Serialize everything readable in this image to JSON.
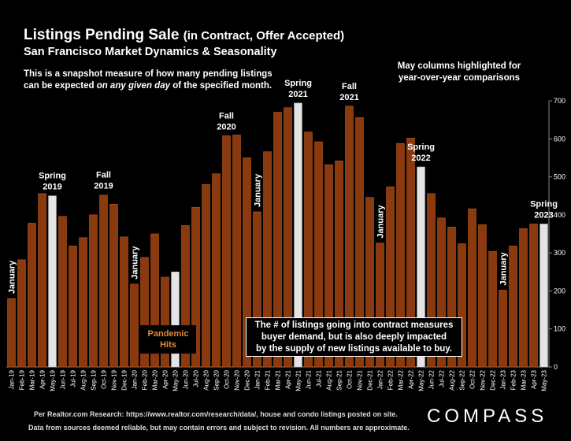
{
  "header": {
    "title_main": "Listings Pending Sale",
    "title_paren": "(in Contract, Offer Accepted)",
    "subtitle": "San Francisco Market Dynamics & Seasonality",
    "desc_line1": "This is a snapshot measure of how many pending listings",
    "desc_line2_a": "can be expected ",
    "desc_line2_em": "on any given day",
    "desc_line2_b": " of the specified month.",
    "may_note_line1": "May columns highlighted for",
    "may_note_line2": "year-over-year comparisons"
  },
  "callout": {
    "line1": "The # of listings going into contract measures",
    "line2": "buyer demand, but is also deeply impacted",
    "line3": "by the supply of new listings available to buy."
  },
  "pandemic": {
    "line1": "Pandemic",
    "line2": "Hits"
  },
  "footer": {
    "line1": "Per Realtor.com Research:  https://www.realtor.com/research/data/, house and condo listings posted on site.",
    "line2": "Data from sources deemed reliable, but may contain errors and subject to revision. All numbers are approximate."
  },
  "logo": "COMPASS",
  "colors": {
    "bar": "#8b3a10",
    "bar_stroke": "#c0581c",
    "highlight": "#e4e4e4",
    "background": "#000000"
  },
  "chart_data": {
    "type": "bar",
    "ylim": [
      0,
      700
    ],
    "yticks": [
      0,
      100,
      200,
      300,
      400,
      500,
      600,
      700
    ],
    "grid": false,
    "categories": [
      "Jan-19",
      "Feb-19",
      "Mar-19",
      "Apr-19",
      "May-19",
      "Jun-19",
      "Jul-19",
      "Aug-19",
      "Sep-19",
      "Oct-19",
      "Nov-19",
      "Dec-19",
      "Jan-20",
      "Feb-20",
      "Mar-20",
      "Apr-20",
      "May-20",
      "Jun-20",
      "Jul-20",
      "Aug-20",
      "Sep-20",
      "Oct-20",
      "Nov-20",
      "Dec-20",
      "Jan-21",
      "Feb-21",
      "Mar-21",
      "Apr-21",
      "May-21",
      "Jun-21",
      "Jul-21",
      "Aug-21",
      "Sep-21",
      "Oct-21",
      "Nov-21",
      "Dec-21",
      "Jan-22",
      "Feb-22",
      "Mar-22",
      "Apr-22",
      "May-22",
      "Jun-22",
      "Jul-22",
      "Aug-22",
      "Sep-22",
      "Oct-22",
      "Nov-22",
      "Dec-22",
      "Jan-23",
      "Feb-23",
      "Mar-23",
      "Apr-23",
      "May-23"
    ],
    "values": [
      180,
      282,
      378,
      456,
      450,
      396,
      318,
      340,
      400,
      452,
      428,
      342,
      218,
      288,
      350,
      236,
      250,
      372,
      420,
      480,
      508,
      608,
      610,
      550,
      408,
      566,
      670,
      682,
      694,
      618,
      592,
      532,
      542,
      686,
      656,
      446,
      326,
      474,
      588,
      602,
      526,
      456,
      392,
      368,
      324,
      416,
      374,
      304,
      202,
      318,
      364,
      376,
      376
    ],
    "highlighted": [
      "May-19",
      "May-20",
      "May-21",
      "May-22",
      "May-23"
    ],
    "annotations": [
      {
        "category": "Jan-19",
        "lines": [
          "January"
        ],
        "rotated": true
      },
      {
        "category": "May-19",
        "lines": [
          "Spring",
          "2019"
        ],
        "rotated": false
      },
      {
        "category": "Oct-19",
        "lines": [
          "Fall",
          "2019"
        ],
        "rotated": false
      },
      {
        "category": "Jan-20",
        "lines": [
          "January"
        ],
        "rotated": true
      },
      {
        "category": "Oct-20",
        "lines": [
          "Fall",
          "2020"
        ],
        "rotated": false
      },
      {
        "category": "Jan-21",
        "lines": [
          "January"
        ],
        "rotated": true
      },
      {
        "category": "May-21",
        "lines": [
          "Spring",
          "2021"
        ],
        "rotated": false
      },
      {
        "category": "Oct-21",
        "lines": [
          "Fall",
          "2021"
        ],
        "rotated": false
      },
      {
        "category": "Jan-22",
        "lines": [
          "January"
        ],
        "rotated": true
      },
      {
        "category": "May-22",
        "lines": [
          "Spring",
          "2022"
        ],
        "rotated": false
      },
      {
        "category": "Jan-23",
        "lines": [
          "January"
        ],
        "rotated": true
      },
      {
        "category": "May-23",
        "lines": [
          "Spring",
          "2023"
        ],
        "rotated": false
      }
    ]
  }
}
